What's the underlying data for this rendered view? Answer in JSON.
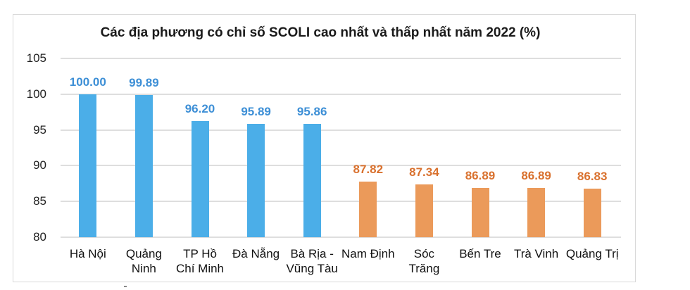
{
  "chart_data": {
    "type": "bar",
    "title": "Các địa phương có chỉ số SCOLI cao nhất và thấp nhất năm 2022 (%)",
    "xlabel": "",
    "ylabel": "",
    "ylim": [
      80,
      105
    ],
    "yticks": [
      "105",
      "100",
      "95",
      "90",
      "85",
      "80"
    ],
    "grid": true,
    "legend": null,
    "categories": [
      "Hà Nội",
      "Quảng Ninh",
      "TP Hồ Chí Minh",
      "Đà Nẵng",
      "Bà Rịa - Vũng Tàu",
      "Nam Định",
      "Sóc Trăng",
      "Bến Tre",
      "Trà Vinh",
      "Quảng Trị"
    ],
    "category_display": [
      "Hà Nội",
      "Quảng\nNinh",
      "TP Hồ\nChí Minh",
      "Đà Nẵng",
      "Bà Rịa -\nVũng Tàu",
      "Nam Định",
      "Sóc\nTrăng",
      "Bến Tre",
      "Trà Vinh",
      "Quảng Trị"
    ],
    "values": [
      100.0,
      99.89,
      96.2,
      95.89,
      95.86,
      87.82,
      87.34,
      86.89,
      86.89,
      86.83
    ],
    "value_labels": [
      "100.00",
      "99.89",
      "96.20",
      "95.89",
      "95.86",
      "87.82",
      "87.34",
      "86.89",
      "86.89",
      "86.83"
    ],
    "groups": [
      "highest",
      "highest",
      "highest",
      "highest",
      "highest",
      "lowest",
      "lowest",
      "lowest",
      "lowest",
      "lowest"
    ],
    "colors": {
      "highest_bar": "#4BAEE8",
      "highest_label": "#3D8FD6",
      "lowest_bar": "#EB9A5A",
      "lowest_label": "#D9712E"
    }
  }
}
